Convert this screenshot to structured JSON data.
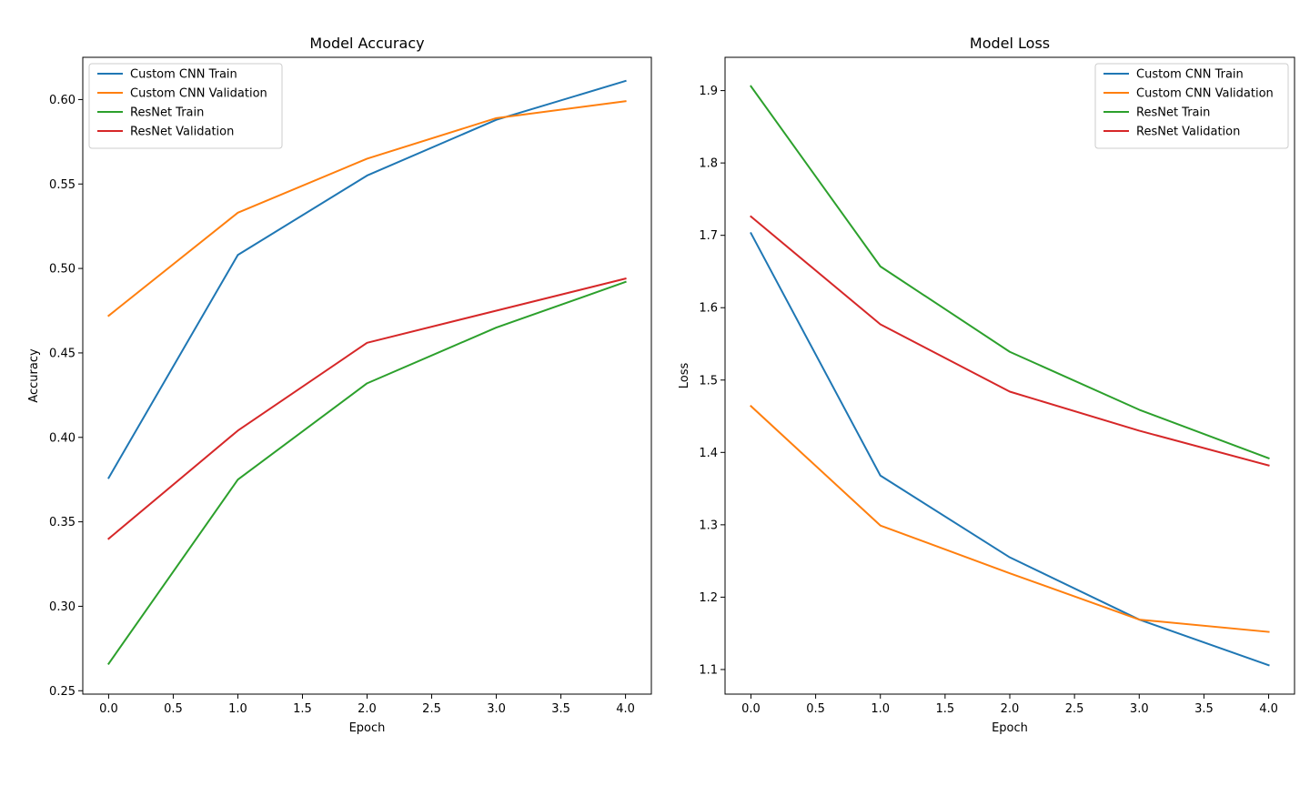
{
  "chart_data": [
    {
      "type": "line",
      "title": "Model Accuracy",
      "xlabel": "Epoch",
      "ylabel": "Accuracy",
      "x": [
        0,
        1,
        2,
        3,
        4
      ],
      "xlim": [
        -0.2,
        4.2
      ],
      "ylim": [
        0.248,
        0.625
      ],
      "xticks": [
        0.0,
        0.5,
        1.0,
        1.5,
        2.0,
        2.5,
        3.0,
        3.5,
        4.0
      ],
      "xtick_labels": [
        "0.0",
        "0.5",
        "1.0",
        "1.5",
        "2.0",
        "2.5",
        "3.0",
        "3.5",
        "4.0"
      ],
      "yticks": [
        0.25,
        0.3,
        0.35,
        0.4,
        0.45,
        0.5,
        0.55,
        0.6
      ],
      "ytick_labels": [
        "0.25",
        "0.30",
        "0.35",
        "0.40",
        "0.45",
        "0.50",
        "0.55",
        "0.60"
      ],
      "grid": false,
      "legend_position": "top-left",
      "series": [
        {
          "name": "Custom CNN Train",
          "color": "#1f77b4",
          "values": [
            0.376,
            0.508,
            0.555,
            0.588,
            0.611
          ]
        },
        {
          "name": "Custom CNN Validation",
          "color": "#ff7f0e",
          "values": [
            0.472,
            0.533,
            0.565,
            0.589,
            0.599
          ]
        },
        {
          "name": "ResNet Train",
          "color": "#2ca02c",
          "values": [
            0.266,
            0.375,
            0.432,
            0.465,
            0.492
          ]
        },
        {
          "name": "ResNet Validation",
          "color": "#d62728",
          "values": [
            0.34,
            0.404,
            0.456,
            0.475,
            0.494
          ]
        }
      ]
    },
    {
      "type": "line",
      "title": "Model Loss",
      "xlabel": "Epoch",
      "ylabel": "Loss",
      "x": [
        0,
        1,
        2,
        3,
        4
      ],
      "xlim": [
        -0.2,
        4.2
      ],
      "ylim": [
        1.066,
        1.946
      ],
      "xticks": [
        0.0,
        0.5,
        1.0,
        1.5,
        2.0,
        2.5,
        3.0,
        3.5,
        4.0
      ],
      "xtick_labels": [
        "0.0",
        "0.5",
        "1.0",
        "1.5",
        "2.0",
        "2.5",
        "3.0",
        "3.5",
        "4.0"
      ],
      "yticks": [
        1.1,
        1.2,
        1.3,
        1.4,
        1.5,
        1.6,
        1.7,
        1.8,
        1.9
      ],
      "ytick_labels": [
        "1.1",
        "1.2",
        "1.3",
        "1.4",
        "1.5",
        "1.6",
        "1.7",
        "1.8",
        "1.9"
      ],
      "grid": false,
      "legend_position": "top-right",
      "series": [
        {
          "name": "Custom CNN Train",
          "color": "#1f77b4",
          "values": [
            1.703,
            1.368,
            1.255,
            1.169,
            1.106
          ]
        },
        {
          "name": "Custom CNN Validation",
          "color": "#ff7f0e",
          "values": [
            1.464,
            1.299,
            1.233,
            1.169,
            1.152
          ]
        },
        {
          "name": "ResNet Train",
          "color": "#2ca02c",
          "values": [
            1.906,
            1.657,
            1.539,
            1.459,
            1.392
          ]
        },
        {
          "name": "ResNet Validation",
          "color": "#d62728",
          "values": [
            1.726,
            1.577,
            1.484,
            1.43,
            1.382
          ]
        }
      ]
    }
  ]
}
